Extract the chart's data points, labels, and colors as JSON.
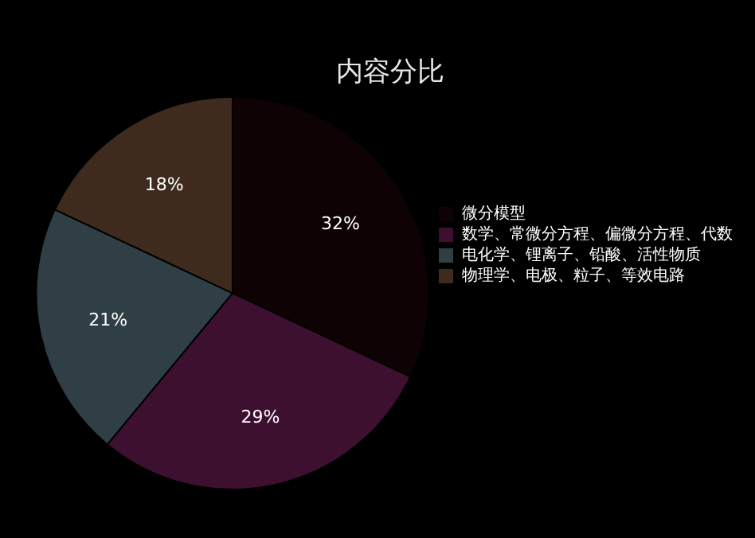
{
  "chart_data": {
    "type": "pie",
    "title": "内容分比",
    "categories": [
      "微分模型",
      "数学、常微分方程、偏微分方程、代数",
      "电化学、锂离子、铅酸、活性物质",
      "物理学、电极、粒子、等效电路"
    ],
    "values": [
      32,
      29,
      21,
      18
    ],
    "value_labels": [
      "32%",
      "29%",
      "21%",
      "18%"
    ],
    "colors": [
      "#0e0204",
      "#3d1030",
      "#2f3f45",
      "#3f2a1e"
    ],
    "legend": "right"
  }
}
